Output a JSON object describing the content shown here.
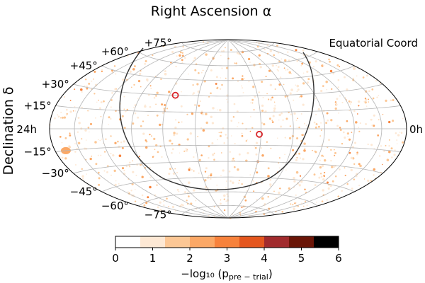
{
  "chart_data": {
    "type": "scatter",
    "projection": "aitoff",
    "title": "Right Ascension α",
    "ylabel": "Declination δ",
    "coord_label": "Equatorial Coord",
    "ra_left_label": "24h",
    "ra_right_label": "0h",
    "dec_ticks": [
      {
        "dec": 75,
        "label": "+75°"
      },
      {
        "dec": 60,
        "label": "+60°"
      },
      {
        "dec": 45,
        "label": "+45°"
      },
      {
        "dec": 30,
        "label": "+30°"
      },
      {
        "dec": 15,
        "label": "+15°"
      },
      {
        "dec": -15,
        "label": "−15°"
      },
      {
        "dec": -30,
        "label": "−30°"
      },
      {
        "dec": -45,
        "label": "−45°"
      },
      {
        "dec": -60,
        "label": "−60°"
      },
      {
        "dec": -75,
        "label": "−75°"
      }
    ],
    "grid": true,
    "hotspots": [
      {
        "ra_h": 15.6,
        "dec": 30
      },
      {
        "ra_h": 10.1,
        "dec": -5
      }
    ],
    "colorbar": {
      "label": "−log₁₀ (p",
      "label_sub": "pre − trial",
      "label_close": ")",
      "min": 0,
      "max": 6,
      "ticks": [
        "0",
        "1",
        "2",
        "3",
        "4",
        "5",
        "6"
      ],
      "colors": [
        "#ffffff",
        "#fde8d4",
        "#fcc795",
        "#fba866",
        "#f7823c",
        "#e4561e",
        "#a12b2d",
        "#6a1507",
        "#000000"
      ]
    },
    "accent_colors": {
      "hotspot_marker": "#d9262a",
      "galactic_plane": "#333333",
      "grid": "#b5b5b5"
    }
  }
}
